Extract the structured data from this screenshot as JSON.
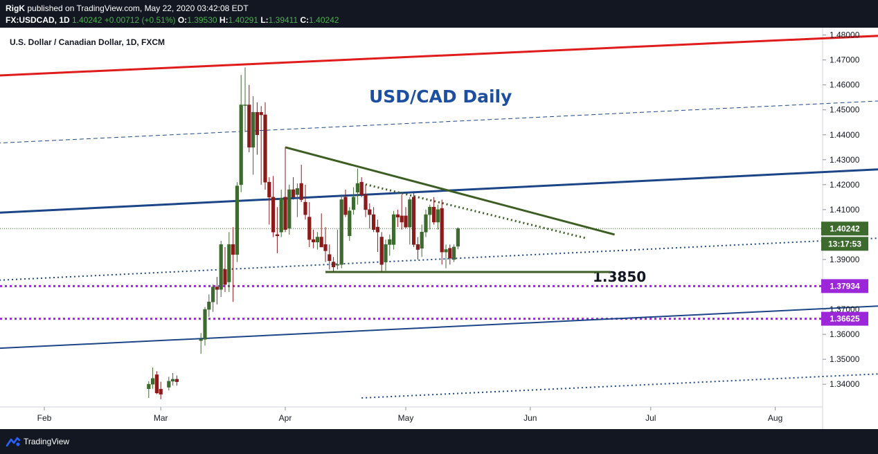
{
  "header": {
    "publisher": "RigK",
    "published_text": "published on TradingView.com, May 22, 2020 03:42:08 EDT",
    "symbol_line": "FX:USDCAD, 1D",
    "last": "1.40242",
    "change": "+0.00712 (+0.51%)",
    "o_label": "O:",
    "o_value": "1.39530",
    "h_label": "H:",
    "h_value": "1.40291",
    "l_label": "L:",
    "l_value": "1.39411",
    "c_label": "C:",
    "c_value": "1.40242"
  },
  "footer": {
    "brand": "TradingView",
    "icon": "tradingview-logo-icon"
  },
  "colors": {
    "up": "#3d6b2e",
    "down": "#8b1a1a",
    "red_line": "#e01b1b",
    "blue_line": "#1c4587",
    "green_line": "#3d5e22",
    "purple": "#9c27d9",
    "title": "#1c4fa0",
    "price_badge": "#3d6b2e"
  },
  "chart_data": {
    "type": "candlestick",
    "title": "U.S. Dollar / Canadian Dollar, 1D, FXCM",
    "annotation_title": "USD/CAD Daily",
    "annotation_level": "1.3850",
    "current_price_label": "1.40242",
    "countdown_label": "13:17:53",
    "level_labels": [
      "1.37934",
      "1.36625"
    ],
    "x_labels": [
      "Feb",
      "Mar",
      "Apr",
      "May",
      "Jun",
      "Jul",
      "Aug"
    ],
    "x_label_days": [
      0,
      29,
      60,
      90,
      121,
      151,
      182
    ],
    "y_tick_labels": [
      "1.48000",
      "1.47000",
      "1.46000",
      "1.45000",
      "1.44000",
      "1.43000",
      "1.42000",
      "1.41000",
      "1.39000",
      "1.37000",
      "1.36000",
      "1.35000",
      "1.34000"
    ],
    "y_tick_values": [
      1.48,
      1.47,
      1.46,
      1.45,
      1.44,
      1.43,
      1.42,
      1.41,
      1.39,
      1.37,
      1.36,
      1.35,
      1.34
    ],
    "ylim": [
      1.3345,
      1.481
    ],
    "candles": [
      {
        "d": 26,
        "o": 1.3382,
        "h": 1.3412,
        "l": 1.3345,
        "c": 1.34
      },
      {
        "d": 27,
        "o": 1.34,
        "h": 1.3467,
        "l": 1.3382,
        "c": 1.3423
      },
      {
        "d": 28,
        "o": 1.3438,
        "h": 1.3452,
        "l": 1.336,
        "c": 1.3365
      },
      {
        "d": 29,
        "o": 1.338,
        "h": 1.341,
        "l": 1.334,
        "c": 1.336
      },
      {
        "d": 31,
        "o": 1.3388,
        "h": 1.343,
        "l": 1.3375,
        "c": 1.3412
      },
      {
        "d": 32,
        "o": 1.3412,
        "h": 1.3445,
        "l": 1.3395,
        "c": 1.342
      },
      {
        "d": 33,
        "o": 1.342,
        "h": 1.3435,
        "l": 1.3395,
        "c": 1.341
      },
      {
        "d": 39,
        "o": 1.3575,
        "h": 1.3605,
        "l": 1.3522,
        "c": 1.358
      },
      {
        "d": 40,
        "o": 1.358,
        "h": 1.371,
        "l": 1.3555,
        "c": 1.37
      },
      {
        "d": 41,
        "o": 1.37,
        "h": 1.376,
        "l": 1.367,
        "c": 1.373
      },
      {
        "d": 42,
        "o": 1.373,
        "h": 1.38,
        "l": 1.369,
        "c": 1.379
      },
      {
        "d": 43,
        "o": 1.379,
        "h": 1.383,
        "l": 1.372,
        "c": 1.378
      },
      {
        "d": 44,
        "o": 1.378,
        "h": 1.3975,
        "l": 1.375,
        "c": 1.396
      },
      {
        "d": 45,
        "o": 1.386,
        "h": 1.395,
        "l": 1.377,
        "c": 1.38
      },
      {
        "d": 46,
        "o": 1.381,
        "h": 1.401,
        "l": 1.377,
        "c": 1.396
      },
      {
        "d": 47,
        "o": 1.396,
        "h": 1.403,
        "l": 1.373,
        "c": 1.392
      },
      {
        "d": 48,
        "o": 1.392,
        "h": 1.421,
        "l": 1.389,
        "c": 1.4195
      },
      {
        "d": 49,
        "o": 1.42,
        "h": 1.464,
        "l": 1.417,
        "c": 1.452
      },
      {
        "d": 50,
        "o": 1.452,
        "h": 1.467,
        "l": 1.441,
        "c": 1.452
      },
      {
        "d": 51,
        "o": 1.452,
        "h": 1.46,
        "l": 1.433,
        "c": 1.435
      },
      {
        "d": 52,
        "o": 1.435,
        "h": 1.4555,
        "l": 1.424,
        "c": 1.449
      },
      {
        "d": 53,
        "o": 1.449,
        "h": 1.453,
        "l": 1.432,
        "c": 1.44
      },
      {
        "d": 54,
        "o": 1.449,
        "h": 1.4515,
        "l": 1.42,
        "c": 1.448
      },
      {
        "d": 55,
        "o": 1.448,
        "h": 1.453,
        "l": 1.418,
        "c": 1.421
      },
      {
        "d": 56,
        "o": 1.421,
        "h": 1.423,
        "l": 1.404,
        "c": 1.415
      },
      {
        "d": 57,
        "o": 1.415,
        "h": 1.4235,
        "l": 1.399,
        "c": 1.401
      },
      {
        "d": 58,
        "o": 1.4,
        "h": 1.411,
        "l": 1.3925,
        "c": 1.3995
      },
      {
        "d": 59,
        "o": 1.401,
        "h": 1.418,
        "l": 1.399,
        "c": 1.4145
      },
      {
        "d": 60,
        "o": 1.415,
        "h": 1.435,
        "l": 1.401,
        "c": 1.402
      },
      {
        "d": 61,
        "o": 1.4025,
        "h": 1.42,
        "l": 1.4,
        "c": 1.418
      },
      {
        "d": 62,
        "o": 1.418,
        "h": 1.423,
        "l": 1.414,
        "c": 1.415
      },
      {
        "d": 63,
        "o": 1.416,
        "h": 1.4205,
        "l": 1.407,
        "c": 1.4185
      },
      {
        "d": 64,
        "o": 1.4205,
        "h": 1.428,
        "l": 1.413,
        "c": 1.414
      },
      {
        "d": 65,
        "o": 1.413,
        "h": 1.42,
        "l": 1.406,
        "c": 1.408
      },
      {
        "d": 66,
        "o": 1.407,
        "h": 1.413,
        "l": 1.395,
        "c": 1.398
      },
      {
        "d": 67,
        "o": 1.398,
        "h": 1.402,
        "l": 1.3945,
        "c": 1.397
      },
      {
        "d": 68,
        "o": 1.397,
        "h": 1.401,
        "l": 1.394,
        "c": 1.399
      },
      {
        "d": 69,
        "o": 1.399,
        "h": 1.4085,
        "l": 1.396,
        "c": 1.395
      },
      {
        "d": 70,
        "o": 1.396,
        "h": 1.403,
        "l": 1.389,
        "c": 1.3935
      },
      {
        "d": 71,
        "o": 1.392,
        "h": 1.396,
        "l": 1.386,
        "c": 1.3895
      },
      {
        "d": 72,
        "o": 1.389,
        "h": 1.391,
        "l": 1.385,
        "c": 1.387
      },
      {
        "d": 73,
        "o": 1.388,
        "h": 1.402,
        "l": 1.386,
        "c": 1.388
      },
      {
        "d": 74,
        "o": 1.388,
        "h": 1.416,
        "l": 1.3865,
        "c": 1.414
      },
      {
        "d": 75,
        "o": 1.415,
        "h": 1.418,
        "l": 1.407,
        "c": 1.408
      },
      {
        "d": 76,
        "o": 1.3995,
        "h": 1.411,
        "l": 1.3975,
        "c": 1.4095
      },
      {
        "d": 77,
        "o": 1.41,
        "h": 1.419,
        "l": 1.408,
        "c": 1.415
      },
      {
        "d": 78,
        "o": 1.417,
        "h": 1.4265,
        "l": 1.412,
        "c": 1.4205
      },
      {
        "d": 79,
        "o": 1.421,
        "h": 1.423,
        "l": 1.415,
        "c": 1.416
      },
      {
        "d": 80,
        "o": 1.416,
        "h": 1.42,
        "l": 1.407,
        "c": 1.41
      },
      {
        "d": 81,
        "o": 1.41,
        "h": 1.4125,
        "l": 1.4025,
        "c": 1.408
      },
      {
        "d": 82,
        "o": 1.408,
        "h": 1.411,
        "l": 1.401,
        "c": 1.402
      },
      {
        "d": 83,
        "o": 1.403,
        "h": 1.406,
        "l": 1.393,
        "c": 1.401
      },
      {
        "d": 84,
        "o": 1.399,
        "h": 1.401,
        "l": 1.385,
        "c": 1.388
      },
      {
        "d": 85,
        "o": 1.389,
        "h": 1.398,
        "l": 1.3855,
        "c": 1.396
      },
      {
        "d": 86,
        "o": 1.396,
        "h": 1.4,
        "l": 1.3915,
        "c": 1.398
      },
      {
        "d": 87,
        "o": 1.396,
        "h": 1.4095,
        "l": 1.394,
        "c": 1.408
      },
      {
        "d": 88,
        "o": 1.408,
        "h": 1.41,
        "l": 1.403,
        "c": 1.407
      },
      {
        "d": 89,
        "o": 1.4075,
        "h": 1.416,
        "l": 1.402,
        "c": 1.405
      },
      {
        "d": 90,
        "o": 1.4075,
        "h": 1.411,
        "l": 1.4025,
        "c": 1.403
      },
      {
        "d": 91,
        "o": 1.403,
        "h": 1.415,
        "l": 1.396,
        "c": 1.414
      },
      {
        "d": 92,
        "o": 1.415,
        "h": 1.417,
        "l": 1.395,
        "c": 1.396
      },
      {
        "d": 93,
        "o": 1.396,
        "h": 1.399,
        "l": 1.39,
        "c": 1.394
      },
      {
        "d": 94,
        "o": 1.3945,
        "h": 1.404,
        "l": 1.391,
        "c": 1.401
      },
      {
        "d": 95,
        "o": 1.401,
        "h": 1.41,
        "l": 1.399,
        "c": 1.408
      },
      {
        "d": 96,
        "o": 1.408,
        "h": 1.412,
        "l": 1.402,
        "c": 1.411
      },
      {
        "d": 97,
        "o": 1.411,
        "h": 1.415,
        "l": 1.404,
        "c": 1.405
      },
      {
        "d": 98,
        "o": 1.405,
        "h": 1.412,
        "l": 1.402,
        "c": 1.41
      },
      {
        "d": 99,
        "o": 1.4105,
        "h": 1.414,
        "l": 1.388,
        "c": 1.393
      },
      {
        "d": 100,
        "o": 1.393,
        "h": 1.396,
        "l": 1.3865,
        "c": 1.394
      },
      {
        "d": 101,
        "o": 1.3945,
        "h": 1.396,
        "l": 1.388,
        "c": 1.3905
      },
      {
        "d": 102,
        "o": 1.39,
        "h": 1.396,
        "l": 1.389,
        "c": 1.395
      },
      {
        "d": 103,
        "o": 1.3953,
        "h": 1.4029,
        "l": 1.3941,
        "c": 1.4024
      }
    ],
    "trend_lines": [
      {
        "name": "red-channel-top",
        "d1": -36,
        "p1": 1.462,
        "d2": 226,
        "p2": 1.481,
        "style": "solid",
        "color": "#e01b1b",
        "width": 3
      },
      {
        "name": "blue-channel-upper-dashed",
        "d1": -36,
        "p1": 1.4348,
        "d2": 246,
        "p2": 1.4565,
        "style": "dashed",
        "color": "#1c4587",
        "width": 1
      },
      {
        "name": "blue-channel-mid-thick",
        "d1": -36,
        "p1": 1.4068,
        "d2": 246,
        "p2": 1.4292,
        "style": "solid",
        "color": "#1c4587",
        "width": 3
      },
      {
        "name": "blue-channel-mid-dotted",
        "d1": -36,
        "p1": 1.3798,
        "d2": 246,
        "p2": 1.4015,
        "style": "dotted",
        "color": "#1c4587",
        "width": 2
      },
      {
        "name": "blue-channel-lower",
        "d1": -36,
        "p1": 1.3525,
        "d2": 246,
        "p2": 1.3743,
        "style": "solid",
        "color": "#1c4587",
        "width": 2
      },
      {
        "name": "blue-channel-bottom-dotted",
        "d1": 79,
        "p1": 1.3345,
        "d2": 246,
        "p2": 1.347,
        "style": "dotted",
        "color": "#1c4587",
        "width": 2
      },
      {
        "name": "triangle-resistance",
        "d1": 60,
        "p1": 1.435,
        "d2": 142,
        "p2": 1.4,
        "style": "solid",
        "color": "#3d5e22",
        "width": 3
      },
      {
        "name": "triangle-resistance-inner-dotted",
        "d1": 79,
        "p1": 1.4205,
        "d2": 135,
        "p2": 1.3985,
        "style": "dotted",
        "color": "#3d5e22",
        "width": 3
      },
      {
        "name": "support-1-3850",
        "d1": 70,
        "p1": 1.385,
        "d2": 141,
        "p2": 1.385,
        "style": "solid",
        "color": "#3d5e22",
        "width": 3
      }
    ],
    "horizontal_levels": [
      {
        "name": "level-1-37934",
        "price": 1.37934,
        "color": "#9c27d9"
      },
      {
        "name": "level-1-36625",
        "price": 1.36625,
        "color": "#9c27d9"
      }
    ]
  }
}
